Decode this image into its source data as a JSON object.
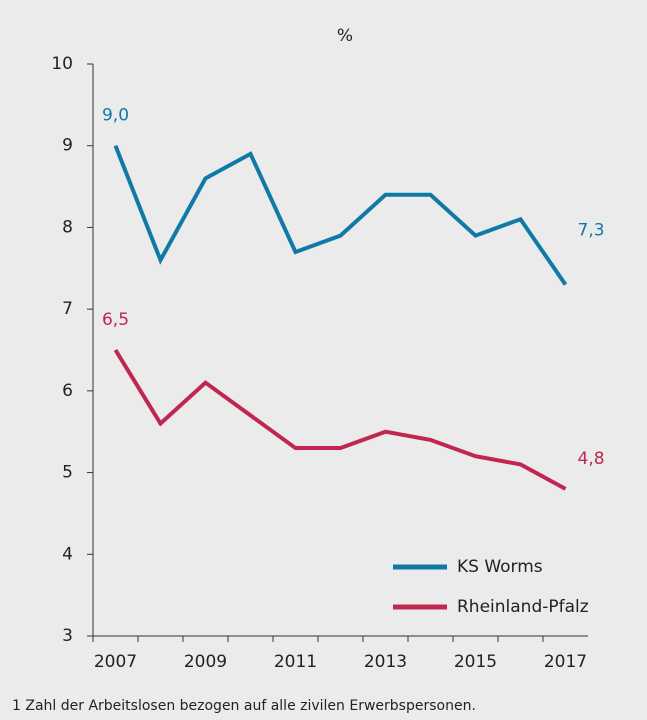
{
  "chart_data": {
    "type": "line",
    "y_label": "%",
    "x": [
      2007,
      2008,
      2009,
      2010,
      2011,
      2012,
      2013,
      2014,
      2015,
      2016,
      2017
    ],
    "series": [
      {
        "name": "KS Worms",
        "color": "#0f7aa6",
        "values": [
          9.0,
          7.6,
          8.6,
          8.9,
          7.7,
          7.9,
          8.4,
          8.4,
          7.9,
          8.1,
          7.3
        ],
        "value_labels": [
          "9,0",
          null,
          null,
          null,
          null,
          null,
          null,
          null,
          null,
          null,
          "7,3"
        ]
      },
      {
        "name": "Rheinland-Pfalz",
        "color": "#c0264f",
        "values": [
          6.5,
          5.6,
          6.1,
          5.7,
          5.3,
          5.3,
          5.5,
          5.4,
          5.2,
          5.1,
          4.8
        ],
        "value_labels": [
          "6,5",
          null,
          null,
          null,
          null,
          null,
          null,
          null,
          null,
          null,
          "4,8"
        ]
      }
    ],
    "xlim": [
      2006.5,
      2017.5
    ],
    "xticks": [
      2007,
      2009,
      2011,
      2013,
      2015,
      2017
    ],
    "ylim": [
      3,
      10
    ],
    "yticks": [
      3,
      4,
      5,
      6,
      7,
      8,
      9,
      10
    ],
    "grid": false,
    "legend": "lower right",
    "footnote": "1 Zahl der Arbeitslosen bezogen auf alle zivilen Erwerbspersonen."
  }
}
